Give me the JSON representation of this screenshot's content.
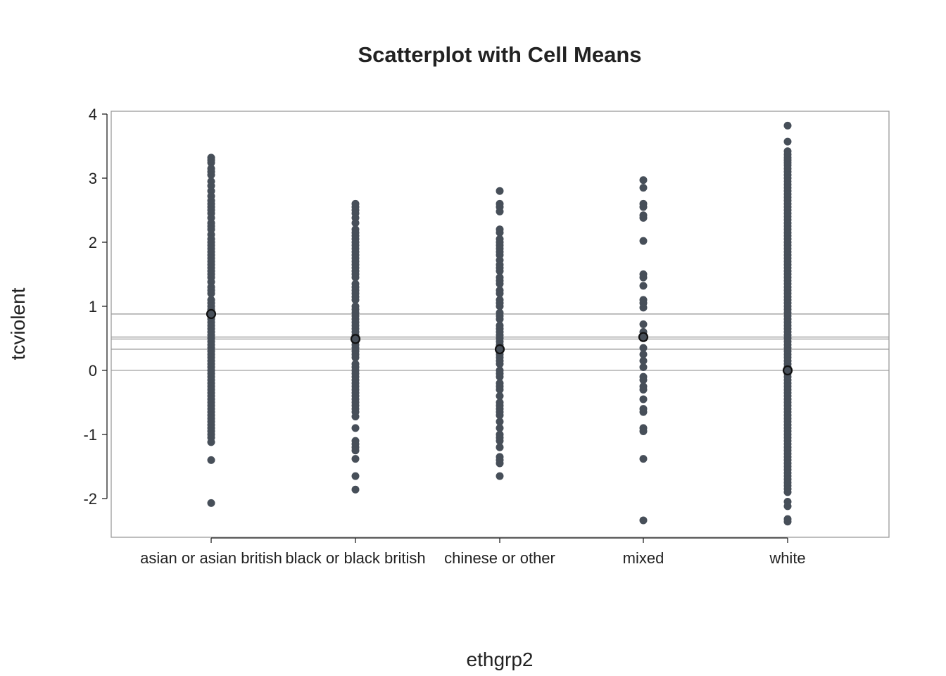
{
  "chart_data": {
    "type": "scatter",
    "title": "Scatterplot with Cell Means",
    "xlabel": "ethgrp2",
    "ylabel": "tcviolent",
    "ylim": [
      -2.6,
      4.05
    ],
    "yticks": [
      -2,
      -1,
      0,
      1,
      2,
      3,
      4
    ],
    "categories": [
      "asian or asian british",
      "black or black british",
      "chinese or other",
      "mixed",
      "white"
    ],
    "grid": false,
    "point_color": "#474f59",
    "mean_color": "#111111",
    "mean_line_color": "#8a8a8a",
    "cell_means": [
      0.88,
      0.49,
      0.33,
      0.52,
      0.0
    ],
    "series": [
      {
        "category": "asian or asian british",
        "values": [
          3.32,
          3.28,
          3.24,
          3.15,
          3.1,
          3.05,
          2.95,
          2.88,
          2.8,
          2.72,
          2.65,
          2.6,
          2.55,
          2.5,
          2.45,
          2.38,
          2.3,
          2.25,
          2.2,
          2.12,
          2.05,
          2.0,
          1.95,
          1.9,
          1.85,
          1.8,
          1.75,
          1.7,
          1.65,
          1.6,
          1.55,
          1.5,
          1.45,
          1.38,
          1.3,
          1.25,
          1.2,
          1.1,
          1.05,
          1.0,
          0.95,
          0.9,
          0.85,
          0.8,
          0.75,
          0.7,
          0.65,
          0.6,
          0.55,
          0.5,
          0.45,
          0.4,
          0.35,
          0.3,
          0.25,
          0.2,
          0.15,
          0.1,
          0.05,
          0.0,
          -0.05,
          -0.1,
          -0.15,
          -0.2,
          -0.25,
          -0.3,
          -0.35,
          -0.4,
          -0.45,
          -0.5,
          -0.55,
          -0.6,
          -0.65,
          -0.7,
          -0.75,
          -0.8,
          -0.85,
          -0.9,
          -0.95,
          -1.0,
          -1.05,
          -1.12,
          -1.4,
          -2.07
        ]
      },
      {
        "category": "black or black british",
        "values": [
          2.6,
          2.55,
          2.5,
          2.45,
          2.38,
          2.3,
          2.2,
          2.15,
          2.1,
          2.05,
          2.0,
          1.95,
          1.9,
          1.85,
          1.8,
          1.75,
          1.7,
          1.65,
          1.6,
          1.55,
          1.5,
          1.45,
          1.35,
          1.3,
          1.25,
          1.2,
          1.15,
          1.1,
          1.0,
          0.95,
          0.9,
          0.85,
          0.8,
          0.75,
          0.7,
          0.65,
          0.6,
          0.55,
          0.5,
          0.45,
          0.4,
          0.35,
          0.3,
          0.25,
          0.2,
          0.1,
          0.05,
          0.0,
          -0.05,
          -0.1,
          -0.15,
          -0.2,
          -0.25,
          -0.3,
          -0.35,
          -0.4,
          -0.45,
          -0.5,
          -0.55,
          -0.6,
          -0.65,
          -0.72,
          -0.9,
          -1.1,
          -1.15,
          -1.2,
          -1.25,
          -1.38,
          -1.65,
          -1.86
        ]
      },
      {
        "category": "chinese or other",
        "values": [
          2.8,
          2.6,
          2.55,
          2.48,
          2.2,
          2.15,
          2.05,
          2.0,
          1.95,
          1.9,
          1.85,
          1.8,
          1.72,
          1.65,
          1.6,
          1.55,
          1.45,
          1.4,
          1.35,
          1.25,
          1.2,
          1.1,
          1.05,
          1.0,
          0.9,
          0.85,
          0.8,
          0.7,
          0.65,
          0.6,
          0.55,
          0.5,
          0.45,
          0.4,
          0.35,
          0.3,
          0.25,
          0.2,
          0.15,
          0.1,
          0.0,
          -0.05,
          -0.1,
          -0.2,
          -0.25,
          -0.3,
          -0.4,
          -0.5,
          -0.55,
          -0.6,
          -0.65,
          -0.7,
          -0.8,
          -0.9,
          -1.0,
          -1.05,
          -1.1,
          -1.2,
          -1.35,
          -1.4,
          -1.45,
          -1.65
        ]
      },
      {
        "category": "mixed",
        "values": [
          2.97,
          2.85,
          2.6,
          2.55,
          2.42,
          2.38,
          2.02,
          1.5,
          1.45,
          1.32,
          1.1,
          1.05,
          0.98,
          0.72,
          0.6,
          0.52,
          0.35,
          0.25,
          0.15,
          0.05,
          -0.1,
          -0.15,
          -0.25,
          -0.3,
          -0.45,
          -0.6,
          -0.65,
          -0.9,
          -0.95,
          -1.38,
          -2.34
        ]
      },
      {
        "category": "white",
        "values": [
          3.82,
          3.57,
          3.42,
          3.37,
          3.32,
          3.28,
          3.24,
          3.2,
          3.15,
          3.1,
          3.05,
          3.0,
          2.95,
          2.9,
          2.85,
          2.8,
          2.75,
          2.7,
          2.65,
          2.6,
          2.55,
          2.5,
          2.45,
          2.4,
          2.35,
          2.3,
          2.25,
          2.2,
          2.15,
          2.1,
          2.05,
          2.0,
          1.95,
          1.9,
          1.85,
          1.8,
          1.75,
          1.7,
          1.65,
          1.6,
          1.55,
          1.5,
          1.45,
          1.4,
          1.35,
          1.3,
          1.25,
          1.2,
          1.15,
          1.1,
          1.05,
          1.0,
          0.95,
          0.9,
          0.85,
          0.8,
          0.75,
          0.7,
          0.65,
          0.6,
          0.55,
          0.5,
          0.45,
          0.4,
          0.35,
          0.3,
          0.25,
          0.2,
          0.15,
          0.1,
          0.05,
          0.0,
          -0.05,
          -0.1,
          -0.15,
          -0.2,
          -0.25,
          -0.3,
          -0.35,
          -0.4,
          -0.45,
          -0.5,
          -0.55,
          -0.6,
          -0.65,
          -0.7,
          -0.75,
          -0.8,
          -0.85,
          -0.9,
          -0.95,
          -1.0,
          -1.05,
          -1.1,
          -1.15,
          -1.2,
          -1.25,
          -1.3,
          -1.35,
          -1.4,
          -1.45,
          -1.5,
          -1.55,
          -1.6,
          -1.65,
          -1.7,
          -1.75,
          -1.8,
          -1.85,
          -1.9,
          -2.05,
          -2.12,
          -2.32,
          -2.36
        ]
      }
    ]
  }
}
